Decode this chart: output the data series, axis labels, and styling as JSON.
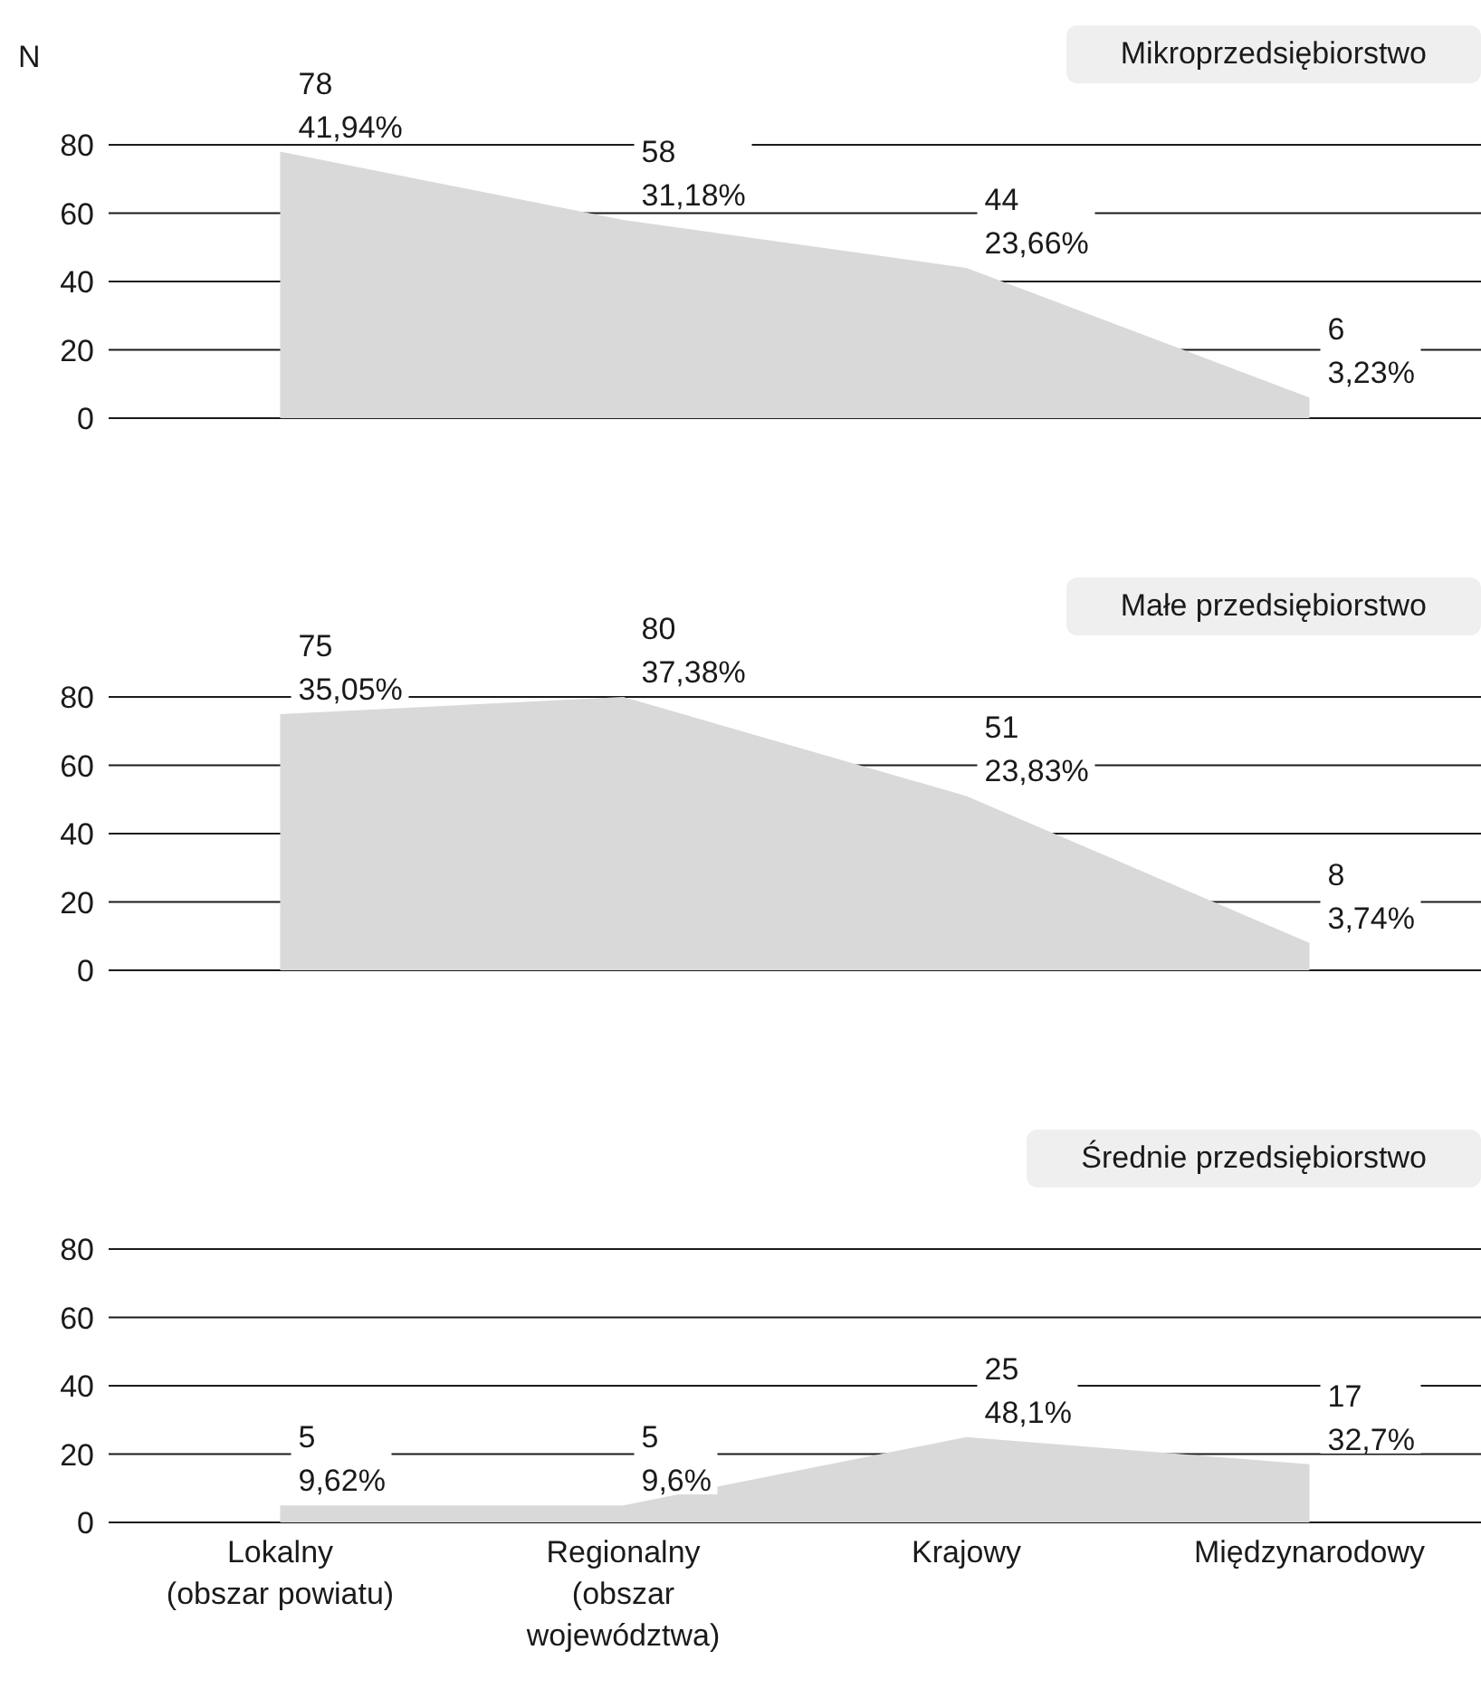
{
  "chart_data": [
    {
      "type": "area",
      "title": "Mikroprzedsiębiorstwo",
      "ylabel": "N",
      "categories": [
        null,
        null,
        null,
        null
      ],
      "values": [
        78,
        58,
        44,
        6
      ],
      "value_labels": [
        "78\n41,94%",
        "58\n31,18%",
        "44\n23,66%",
        "6\n3,23%"
      ],
      "color": "#d9d9d9",
      "ylim": [
        0,
        80
      ],
      "yticks": [
        0,
        20,
        40,
        60,
        80
      ],
      "grid": "y",
      "tick_labels": "y"
    },
    {
      "type": "area",
      "title": "Małe przedsiębiorstwo",
      "categories": [
        null,
        null,
        null,
        null
      ],
      "values": [
        75,
        80,
        51,
        8
      ],
      "value_labels": [
        "75\n35,05%",
        "80\n37,38%",
        "51\n23,83%",
        "8\n3,74%"
      ],
      "color": "#d9d9d9",
      "ylim": [
        0,
        80
      ],
      "yticks": [
        0,
        20,
        40,
        60,
        80
      ],
      "grid": "y",
      "tick_labels": "y"
    },
    {
      "type": "area",
      "title": "Średnie przedsiębiorstwo",
      "categories": [
        "Lokalny (obszar powiatu)",
        "Regionalny (obszar województwa)",
        "Krajowy",
        "Międzynarodowy"
      ],
      "values": [
        5,
        5,
        25,
        17
      ],
      "value_labels": [
        "5\n9,62%",
        "5\n9,6%",
        "25\n48,1%",
        "17\n32,7%"
      ],
      "color": "#d9d9d9",
      "ylim": [
        0,
        80
      ],
      "yticks": [
        0,
        20,
        40,
        60,
        80
      ],
      "grid": "y"
    }
  ]
}
